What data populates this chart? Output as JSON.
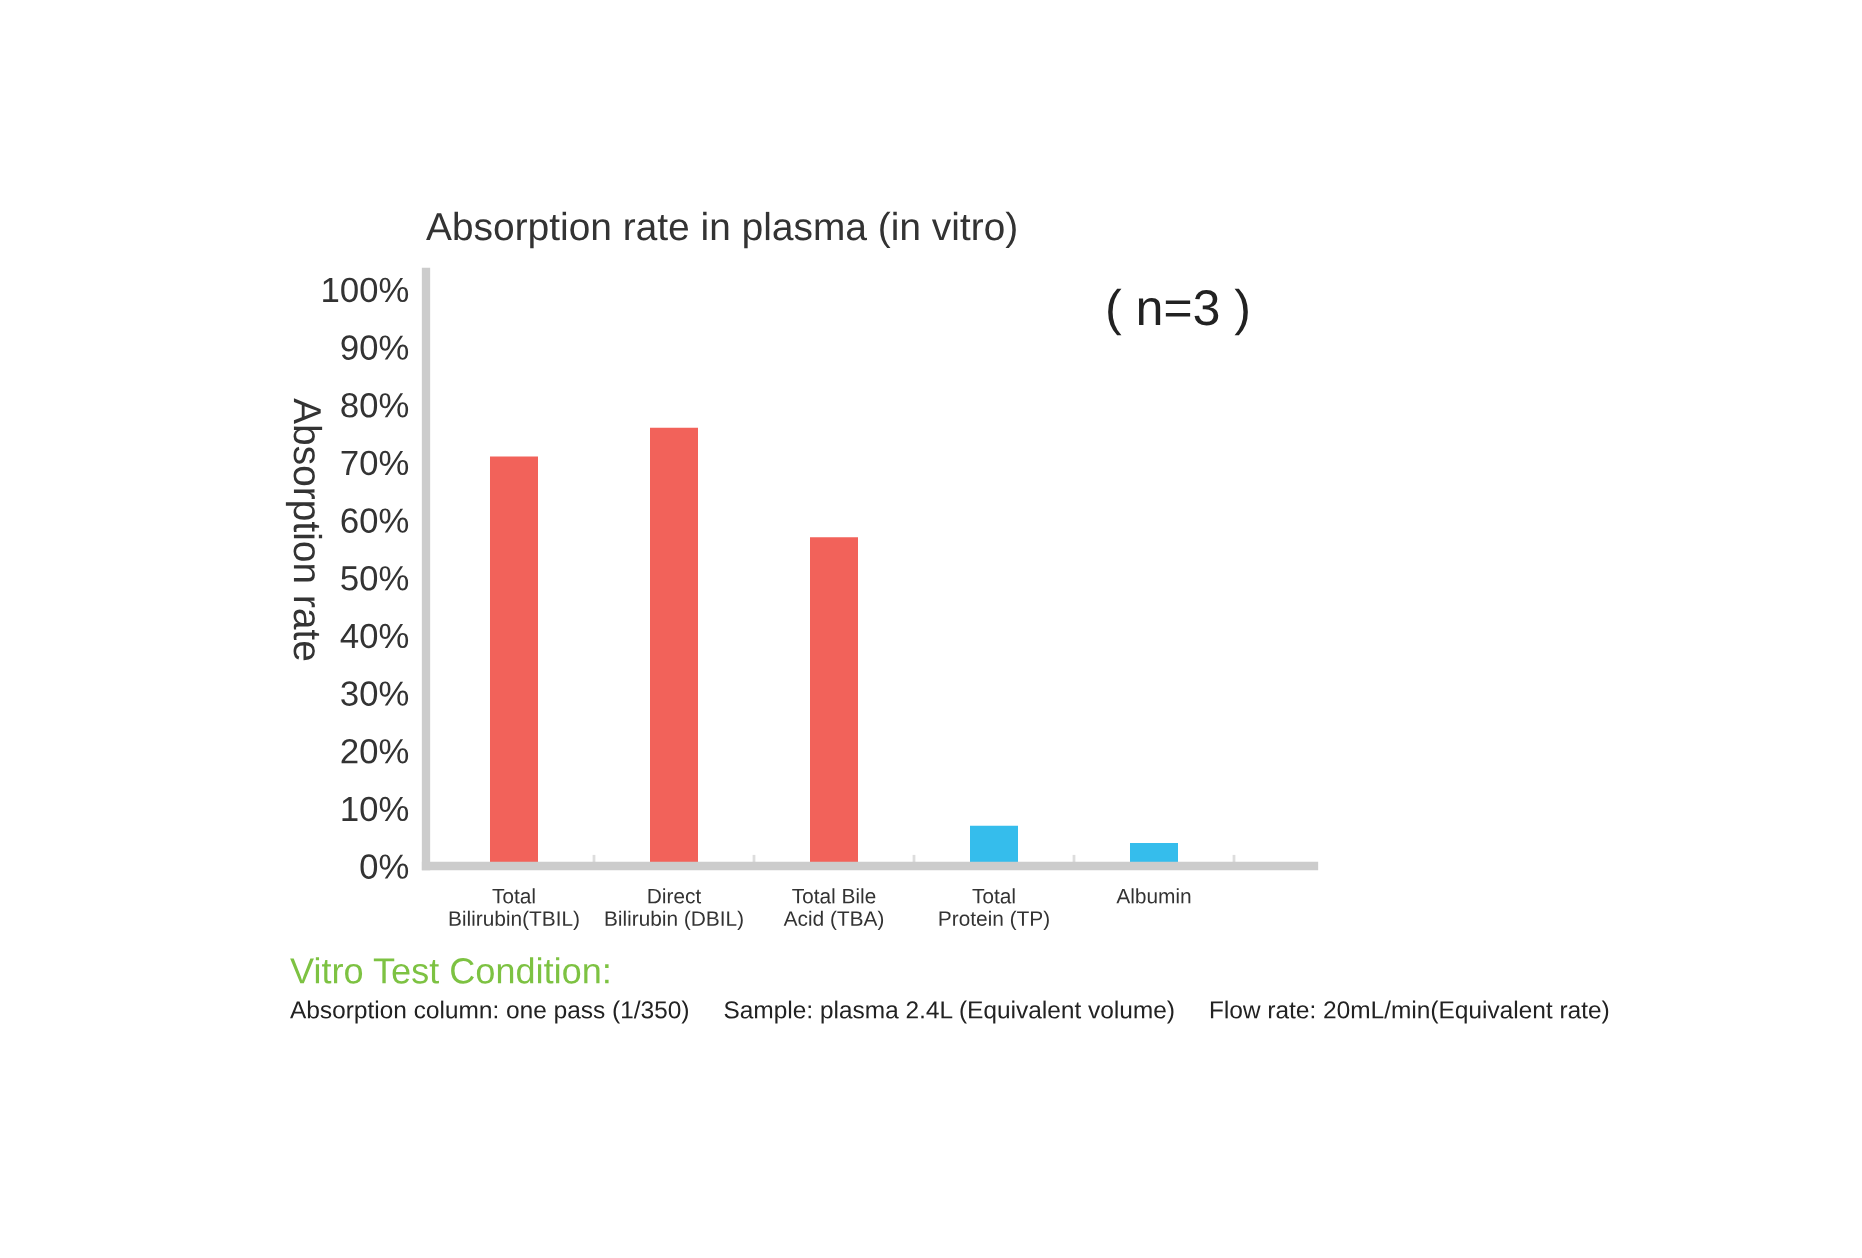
{
  "chart_data": {
    "type": "bar",
    "title": "Absorption rate in plasma (in vitro)",
    "ylabel": "Absorption rate",
    "categories": [
      "Total\nBilirubin(TBIL)",
      "Direct\nBilirubin (DBIL)",
      "Total Bile\nAcid (TBA)",
      "Total\nProtein (TP)",
      "Albumin"
    ],
    "values": [
      71,
      76,
      57,
      7,
      4
    ],
    "colors": [
      "#f2625a",
      "#f2625a",
      "#f2625a",
      "#35bdec",
      "#35bdec"
    ],
    "ylim": [
      0,
      103
    ],
    "yticks": [
      {
        "value": 0,
        "label": "0%"
      },
      {
        "value": 10,
        "label": "10%"
      },
      {
        "value": 20,
        "label": "20%"
      },
      {
        "value": 30,
        "label": "30%"
      },
      {
        "value": 40,
        "label": "40%"
      },
      {
        "value": 50,
        "label": "50%"
      },
      {
        "value": 60,
        "label": "60%"
      },
      {
        "value": 70,
        "label": "70%"
      },
      {
        "value": 80,
        "label": "80%"
      },
      {
        "value": 90,
        "label": "90%"
      },
      {
        "value": 100,
        "label": "100%"
      }
    ],
    "grid": false,
    "legend": false,
    "annotations": [
      "( n=3 )",
      "Vitro Test Condition:",
      "Absorption column: one pass (1/350)     Sample: plasma 2.4L (Equivalent volume)     Flow rate: 20mL/min(Equivalent rate)"
    ]
  }
}
